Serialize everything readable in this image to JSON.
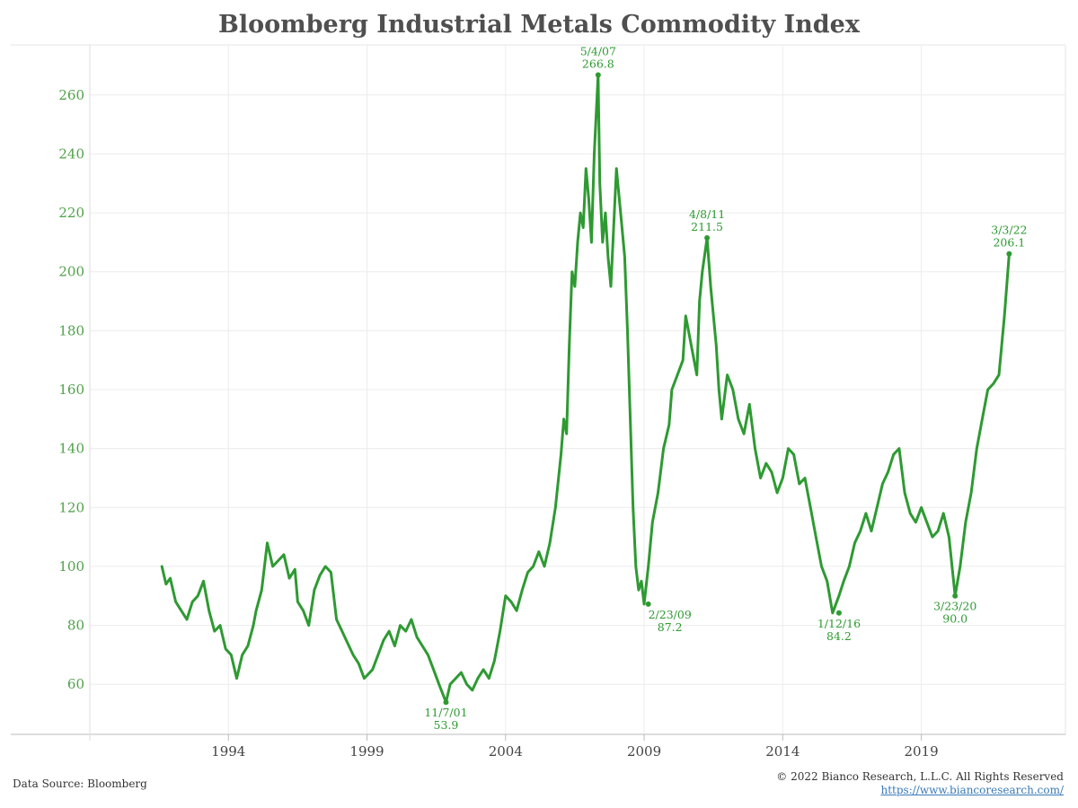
{
  "chart_data": {
    "type": "line",
    "title": "Bloomberg Industrial Metals Commodity Index",
    "xlabel": "",
    "ylabel": "",
    "xlim": [
      1989.0,
      2024.2
    ],
    "ylim": [
      43,
      277
    ],
    "y_ticks": [
      60,
      80,
      100,
      120,
      140,
      160,
      180,
      200,
      220,
      240,
      260
    ],
    "x_ticks": [
      1994,
      1999,
      2004,
      2009,
      2014,
      2019
    ],
    "grid": true,
    "legend": "none",
    "line_color": "#2e9a32",
    "series": [
      {
        "x": [
          1991.6,
          1991.75,
          1991.9,
          1992.1,
          1992.3,
          1992.5,
          1992.7,
          1992.9,
          1993.1,
          1993.3,
          1993.5,
          1993.7,
          1993.9,
          1994.1,
          1994.3,
          1994.5,
          1994.7,
          1994.9,
          1995.0,
          1995.2,
          1995.4,
          1995.6,
          1995.8,
          1996.0,
          1996.2,
          1996.4,
          1996.5,
          1996.7,
          1996.9,
          1997.1,
          1997.3,
          1997.5,
          1997.7,
          1997.9,
          1998.1,
          1998.3,
          1998.5,
          1998.7,
          1998.9,
          1999.0,
          1999.2,
          1999.4,
          1999.6,
          1999.8,
          2000.0,
          2000.2,
          2000.4,
          2000.6,
          2000.8,
          2001.0,
          2001.2,
          2001.4,
          2001.6,
          2001.85,
          2002.0,
          2002.2,
          2002.4,
          2002.6,
          2002.8,
          2003.0,
          2003.2,
          2003.4,
          2003.6,
          2003.8,
          2004.0,
          2004.2,
          2004.4,
          2004.6,
          2004.8,
          2005.0,
          2005.2,
          2005.4,
          2005.6,
          2005.8,
          2006.0,
          2006.1,
          2006.2,
          2006.3,
          2006.4,
          2006.5,
          2006.6,
          2006.7,
          2006.8,
          2006.9,
          2007.0,
          2007.1,
          2007.2,
          2007.34,
          2007.4,
          2007.5,
          2007.6,
          2007.7,
          2007.8,
          2007.9,
          2008.0,
          2008.1,
          2008.2,
          2008.3,
          2008.4,
          2008.5,
          2008.6,
          2008.7,
          2008.8,
          2008.9,
          2009.0,
          2009.15,
          2009.3,
          2009.5,
          2009.7,
          2009.9,
          2010.0,
          2010.2,
          2010.4,
          2010.5,
          2010.7,
          2010.9,
          2011.0,
          2011.1,
          2011.27,
          2011.4,
          2011.5,
          2011.6,
          2011.7,
          2011.8,
          2012.0,
          2012.2,
          2012.4,
          2012.6,
          2012.8,
          2013.0,
          2013.2,
          2013.4,
          2013.6,
          2013.8,
          2014.0,
          2014.2,
          2014.4,
          2014.6,
          2014.8,
          2015.0,
          2015.2,
          2015.4,
          2015.6,
          2015.8,
          2016.03,
          2016.2,
          2016.4,
          2016.6,
          2016.8,
          2017.0,
          2017.2,
          2017.4,
          2017.6,
          2017.8,
          2018.0,
          2018.2,
          2018.4,
          2018.6,
          2018.8,
          2019.0,
          2019.2,
          2019.4,
          2019.6,
          2019.8,
          2020.0,
          2020.22,
          2020.4,
          2020.6,
          2020.8,
          2021.0,
          2021.2,
          2021.4,
          2021.6,
          2021.8,
          2022.0,
          2022.17
        ],
        "values": [
          100,
          94,
          96,
          88,
          85,
          82,
          88,
          90,
          95,
          85,
          78,
          80,
          72,
          70,
          62,
          70,
          73,
          80,
          85,
          92,
          108,
          100,
          102,
          104,
          96,
          99,
          88,
          85,
          80,
          92,
          97,
          100,
          98,
          82,
          78,
          74,
          70,
          67,
          62,
          63,
          65,
          70,
          75,
          78,
          73,
          80,
          78,
          82,
          76,
          73,
          70,
          65,
          60,
          53.9,
          60,
          62,
          64,
          60,
          58,
          62,
          65,
          62,
          68,
          78,
          90,
          88,
          85,
          92,
          98,
          100,
          105,
          100,
          108,
          120,
          138,
          150,
          145,
          175,
          200,
          195,
          210,
          220,
          215,
          235,
          225,
          210,
          240,
          266.8,
          230,
          210,
          220,
          205,
          195,
          215,
          235,
          225,
          215,
          205,
          180,
          150,
          120,
          100,
          92,
          95,
          87.2,
          100,
          115,
          125,
          140,
          148,
          160,
          165,
          170,
          185,
          175,
          165,
          190,
          200,
          211.5,
          195,
          185,
          175,
          160,
          150,
          165,
          160,
          150,
          145,
          155,
          140,
          130,
          135,
          132,
          125,
          130,
          140,
          138,
          128,
          130,
          120,
          110,
          100,
          95,
          84.2,
          90,
          95,
          100,
          108,
          112,
          118,
          112,
          120,
          128,
          132,
          138,
          140,
          125,
          118,
          115,
          120,
          115,
          110,
          112,
          118,
          110,
          90.0,
          100,
          115,
          125,
          140,
          150,
          160,
          162,
          165,
          185,
          206.1
        ]
      }
    ],
    "annotations": [
      {
        "x": 2007.34,
        "y": 266.8,
        "date": "5/4/07",
        "value": "266.8",
        "pos": "above"
      },
      {
        "x": 2001.85,
        "y": 53.9,
        "date": "11/7/01",
        "value": "53.9",
        "pos": "below"
      },
      {
        "x": 2009.15,
        "y": 87.2,
        "date": "2/23/09",
        "value": "87.2",
        "pos": "below-right"
      },
      {
        "x": 2011.27,
        "y": 211.5,
        "date": "4/8/11",
        "value": "211.5",
        "pos": "above"
      },
      {
        "x": 2016.03,
        "y": 84.2,
        "date": "1/12/16",
        "value": "84.2",
        "pos": "below"
      },
      {
        "x": 2020.22,
        "y": 90.0,
        "date": "3/23/20",
        "value": "90.0",
        "pos": "below"
      },
      {
        "x": 2022.17,
        "y": 206.1,
        "date": "3/3/22",
        "value": "206.1",
        "pos": "above"
      }
    ]
  },
  "footer": {
    "source": "Data Source: Bloomberg",
    "copyright": "© 2022 Bianco Research, L.L.C. All Rights Reserved",
    "url": "https://www.biancoresearch.com/"
  }
}
